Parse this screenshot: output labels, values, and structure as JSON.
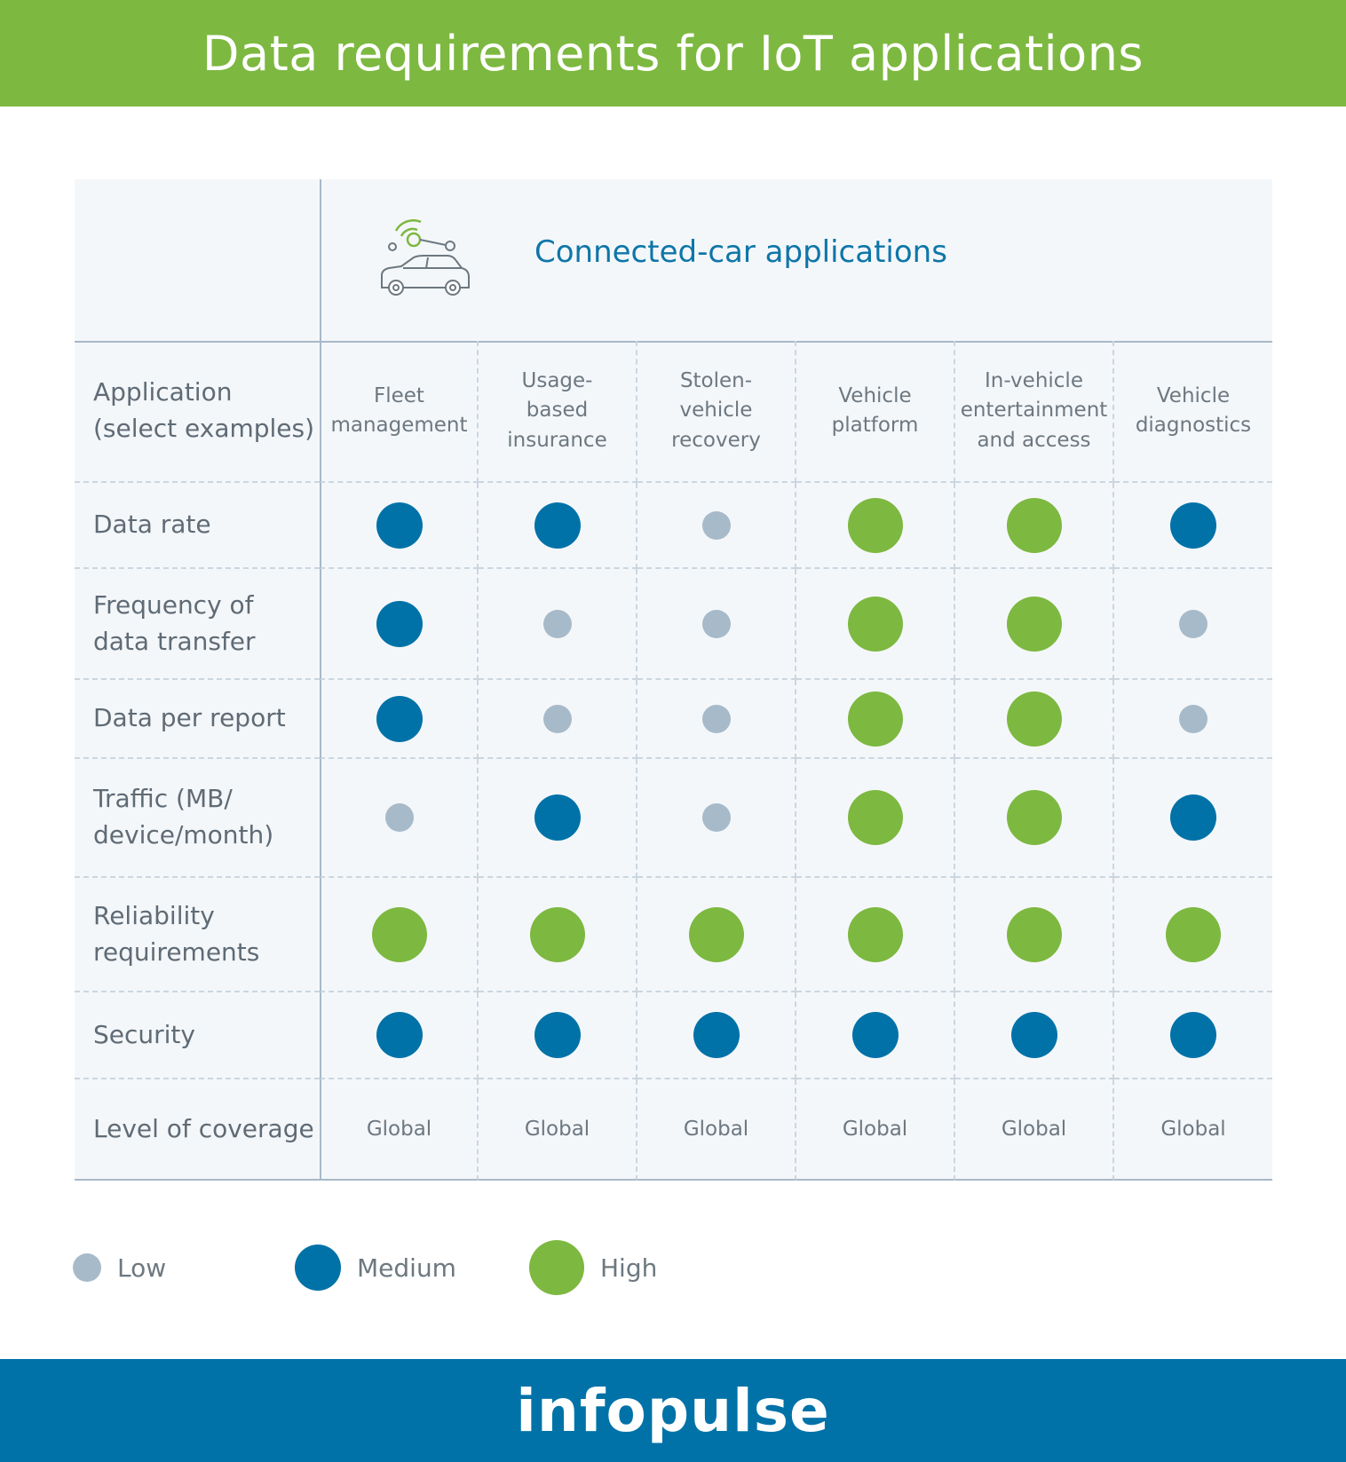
{
  "header": {
    "title": "Data requirements for IoT applications"
  },
  "group": {
    "label": "Connected-car applications",
    "icon": "connected-car-icon"
  },
  "table": {
    "columns": [
      "Fleet\nmanagement",
      "Usage-\nbased\ninsurance",
      "Stolen-\nvehicle\nrecovery",
      "Vehicle\nplatform",
      "In-vehicle\nentertainment\nand access",
      "Vehicle\ndiagnostics"
    ],
    "header_row_label": "Application\n(select examples)",
    "rows": [
      {
        "label": "Data rate",
        "levels": [
          "medium",
          "medium",
          "low",
          "high",
          "high",
          "medium"
        ]
      },
      {
        "label": "Frequency of\ndata transfer",
        "levels": [
          "medium",
          "low",
          "low",
          "high",
          "high",
          "low"
        ]
      },
      {
        "label": "Data per report",
        "levels": [
          "medium",
          "low",
          "low",
          "high",
          "high",
          "low"
        ]
      },
      {
        "label": "Traffic (MB/\ndevice/month)",
        "levels": [
          "low",
          "medium",
          "low",
          "high",
          "high",
          "medium"
        ]
      },
      {
        "label": "Reliability\nrequirements",
        "levels": [
          "high",
          "high",
          "high",
          "high",
          "high",
          "high"
        ]
      },
      {
        "label": "Security",
        "levels": [
          "medium",
          "medium",
          "medium",
          "medium",
          "medium",
          "medium"
        ]
      }
    ],
    "coverage": {
      "label": "Level of coverage",
      "values": [
        "Global",
        "Global",
        "Global",
        "Global",
        "Global",
        "Global"
      ]
    }
  },
  "legend": [
    {
      "level": "low",
      "label": "Low"
    },
    {
      "level": "medium",
      "label": "Medium"
    },
    {
      "level": "high",
      "label": "High"
    }
  ],
  "colors": {
    "low": "#a7bac9",
    "medium": "#0072a8",
    "high": "#7db840"
  },
  "footer": {
    "logo": "infopulse"
  }
}
